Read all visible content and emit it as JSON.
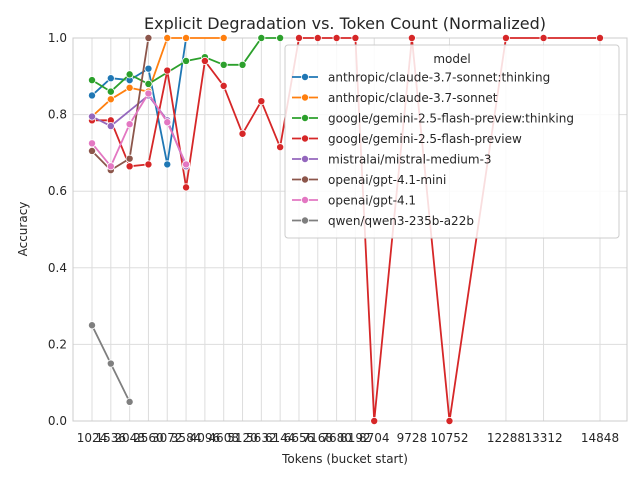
{
  "chart_data": {
    "type": "line",
    "title": "Explicit Degradation vs. Token Count (Normalized)",
    "xlabel": "Tokens (bucket start)",
    "ylabel": "Accuracy",
    "ylim": [
      0,
      1
    ],
    "yticks": [
      "0.0",
      "0.2",
      "0.4",
      "0.6",
      "0.8",
      "1.0"
    ],
    "x_categories": [
      "1024",
      "1536",
      "2048",
      "2560",
      "3072",
      "3584",
      "4096",
      "4608",
      "5120",
      "5632",
      "6144",
      "6656",
      "7168",
      "7680",
      "8192",
      "8704",
      "9728",
      "10752",
      "12288",
      "13312",
      "14848"
    ],
    "grid": true,
    "legend": {
      "title": "model",
      "position": "top-right"
    },
    "series": [
      {
        "name": "anthropic/claude-3.7-sonnet:thinking",
        "color": "#1f77b4",
        "points": [
          [
            "1024",
            0.85
          ],
          [
            "1536",
            0.895
          ],
          [
            "2048",
            0.89
          ],
          [
            "2560",
            0.92
          ],
          [
            "3072",
            0.67
          ],
          [
            "3584",
            1.0
          ]
        ]
      },
      {
        "name": "anthropic/claude-3.7-sonnet",
        "color": "#ff7f0e",
        "points": [
          [
            "1024",
            0.795
          ],
          [
            "1536",
            0.84
          ],
          [
            "2048",
            0.87
          ],
          [
            "2560",
            0.86
          ],
          [
            "3072",
            1.0
          ],
          [
            "3584",
            1.0
          ],
          [
            "4608",
            1.0
          ]
        ]
      },
      {
        "name": "google/gemini-2.5-flash-preview:thinking",
        "color": "#2ca02c",
        "points": [
          [
            "1024",
            0.89
          ],
          [
            "1536",
            0.86
          ],
          [
            "2048",
            0.905
          ],
          [
            "2560",
            0.88
          ],
          [
            "3584",
            0.94
          ],
          [
            "4096",
            0.95
          ],
          [
            "4608",
            0.93
          ],
          [
            "5120",
            0.93
          ],
          [
            "5632",
            1.0
          ],
          [
            "6144",
            1.0
          ]
        ]
      },
      {
        "name": "google/gemini-2.5-flash-preview",
        "color": "#d62728",
        "points": [
          [
            "1024",
            0.785
          ],
          [
            "1536",
            0.785
          ],
          [
            "2048",
            0.665
          ],
          [
            "2560",
            0.67
          ],
          [
            "3072",
            0.915
          ],
          [
            "3584",
            0.61
          ],
          [
            "4096",
            0.94
          ],
          [
            "4608",
            0.875
          ],
          [
            "5120",
            0.75
          ],
          [
            "5632",
            0.835
          ],
          [
            "6144",
            0.715
          ],
          [
            "6656",
            1.0
          ],
          [
            "7168",
            1.0
          ],
          [
            "7680",
            1.0
          ],
          [
            "8192",
            1.0
          ],
          [
            "8704",
            0.0
          ],
          [
            "9728",
            1.0
          ],
          [
            "10752",
            0.0
          ],
          [
            "12288",
            1.0
          ],
          [
            "13312",
            1.0
          ],
          [
            "14848",
            1.0
          ]
        ]
      },
      {
        "name": "mistralai/mistral-medium-3",
        "color": "#9467bd",
        "points": [
          [
            "1024",
            0.795
          ],
          [
            "1536",
            0.77
          ],
          [
            "2560",
            0.85
          ],
          [
            "3072",
            0.785
          ],
          [
            "3584",
            0.665
          ]
        ]
      },
      {
        "name": "openai/gpt-4.1-mini",
        "color": "#8c564b",
        "points": [
          [
            "1024",
            0.705
          ],
          [
            "1536",
            0.655
          ],
          [
            "2048",
            0.685
          ],
          [
            "2560",
            1.0
          ]
        ]
      },
      {
        "name": "openai/gpt-4.1",
        "color": "#e377c2",
        "points": [
          [
            "1024",
            0.725
          ],
          [
            "1536",
            0.665
          ],
          [
            "2048",
            0.775
          ],
          [
            "2560",
            0.855
          ],
          [
            "3072",
            0.78
          ],
          [
            "3584",
            0.67
          ]
        ]
      },
      {
        "name": "qwen/qwen3-235b-a22b",
        "color": "#7f7f7f",
        "points": [
          [
            "1024",
            0.25
          ],
          [
            "1536",
            0.15
          ],
          [
            "2048",
            0.05
          ]
        ]
      }
    ]
  }
}
